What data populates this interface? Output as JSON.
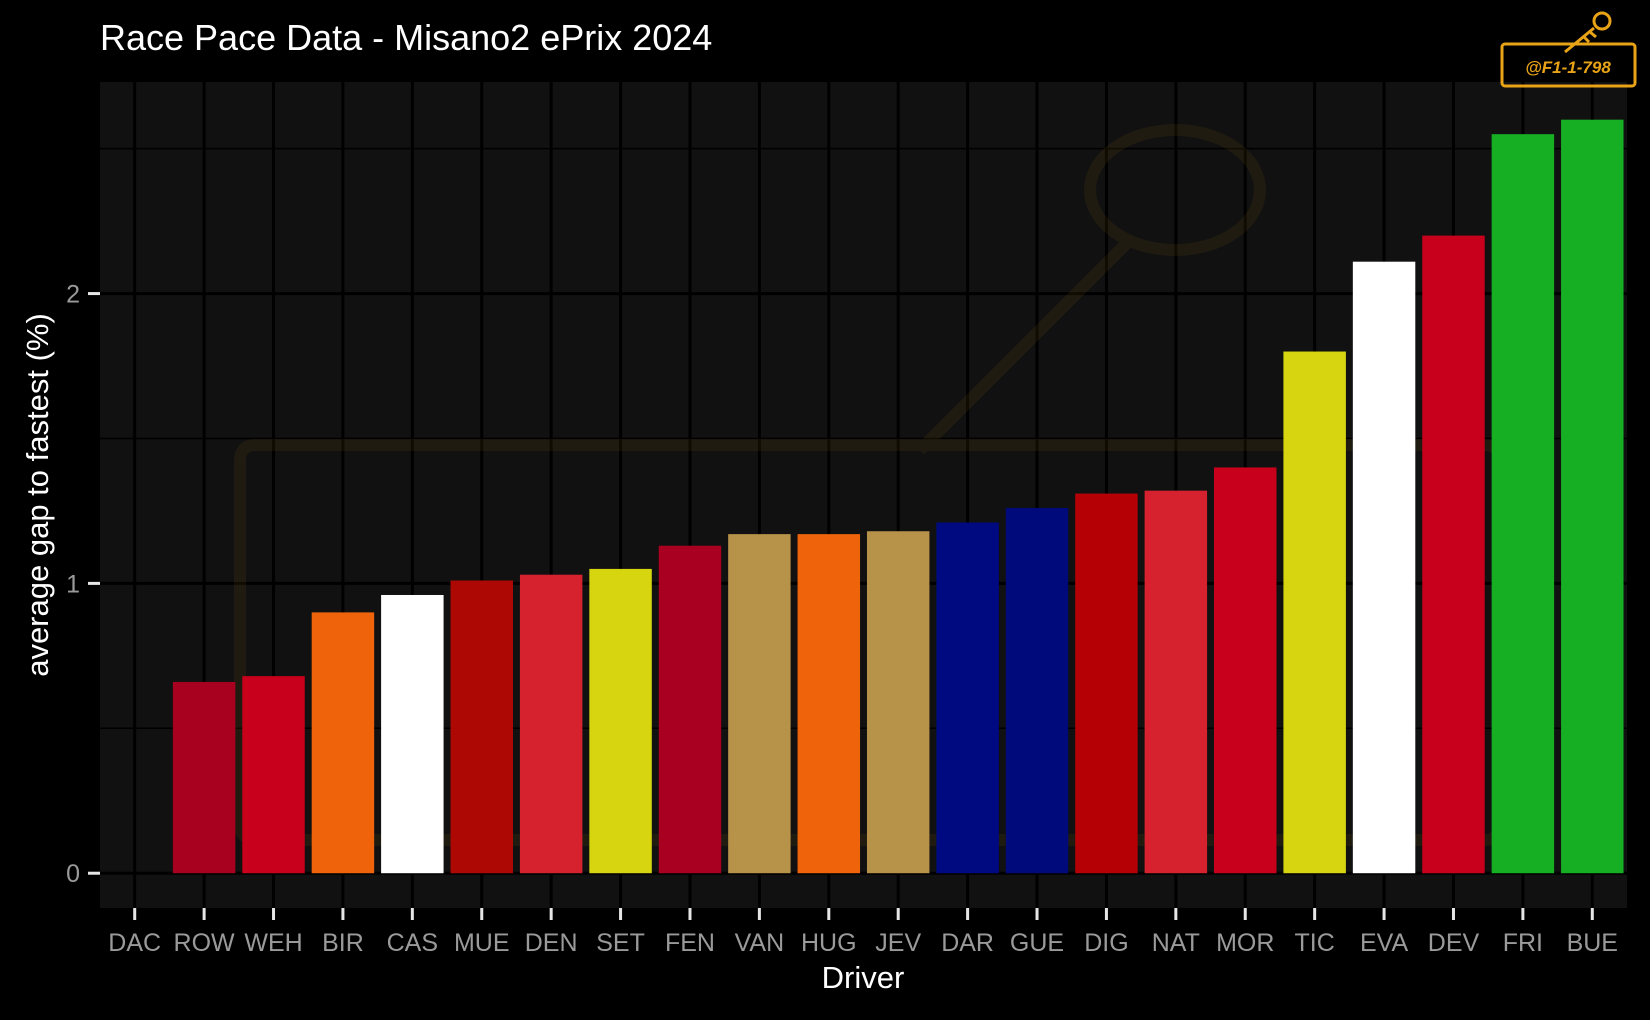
{
  "chart_data": {
    "type": "bar",
    "title": "Race Pace Data - Misano2 ePrix 2024",
    "xlabel": "Driver",
    "ylabel": "average gap to fastest (%)",
    "ylim": [
      -0.12,
      2.73
    ],
    "yticks": [
      0,
      1,
      2
    ],
    "grid": true,
    "categories": [
      "DAC",
      "ROW",
      "WEH",
      "BIR",
      "CAS",
      "MUE",
      "DEN",
      "SET",
      "FEN",
      "VAN",
      "HUG",
      "JEV",
      "DAR",
      "GUE",
      "DIG",
      "NAT",
      "MOR",
      "TIC",
      "EVA",
      "DEV",
      "FRI",
      "BUE"
    ],
    "values": [
      0.0,
      0.66,
      0.68,
      0.9,
      0.96,
      1.01,
      1.03,
      1.05,
      1.13,
      1.17,
      1.17,
      1.18,
      1.21,
      1.26,
      1.31,
      1.32,
      1.4,
      1.8,
      2.11,
      2.2,
      2.55,
      2.6
    ],
    "colors": [
      "#000000",
      "#a8001f",
      "#c9001c",
      "#ef630a",
      "#ffffff",
      "#ae0805",
      "#d5222e",
      "#d6d510",
      "#a90021",
      "#b79249",
      "#ef630a",
      "#b79249",
      "#000a80",
      "#000a7a",
      "#b50006",
      "#d5222e",
      "#c9001c",
      "#d6d510",
      "#ffffff",
      "#c9001c",
      "#16ae23",
      "#16ae23"
    ]
  },
  "colors": {
    "background": "#000000",
    "panel": "#111111",
    "grid": "#000000",
    "watermark": "#e8a317"
  },
  "watermark": {
    "handle": "@F1-1-798"
  }
}
